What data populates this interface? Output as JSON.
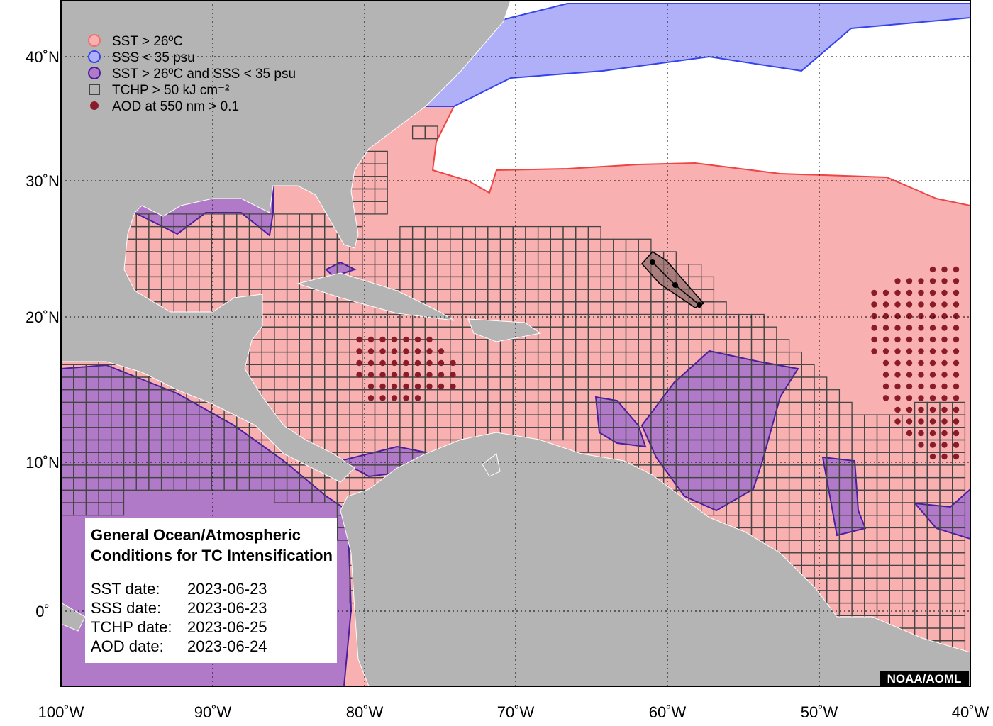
{
  "legend": [
    "SST > 26ºC",
    "SSS < 35 psu",
    "SST > 26ºC and SSS < 35 psu",
    "TCHP > 50 kJ cm⁻²",
    "AOD at 550 nm > 0.1"
  ],
  "info": {
    "title": [
      "General Ocean/Atmospheric",
      "Conditions for TC Intensification"
    ],
    "rows": [
      {
        "label": "SST date:",
        "date": "2023-06-23"
      },
      {
        "label": "SSS date:",
        "date": "2023-06-23"
      },
      {
        "label": "TCHP date:",
        "date": "2023-06-25"
      },
      {
        "label": "AOD date:",
        "date": "2023-06-24"
      }
    ]
  },
  "axes": {
    "lon_labels": [
      "100˚W",
      "90˚W",
      "80˚W",
      "70˚W",
      "60˚W",
      "50˚W",
      "40˚W"
    ],
    "lat_labels": [
      "40˚N",
      "30˚N",
      "20˚N",
      "10˚N",
      "0˚"
    ]
  },
  "credit": "NOAA/AOML"
}
